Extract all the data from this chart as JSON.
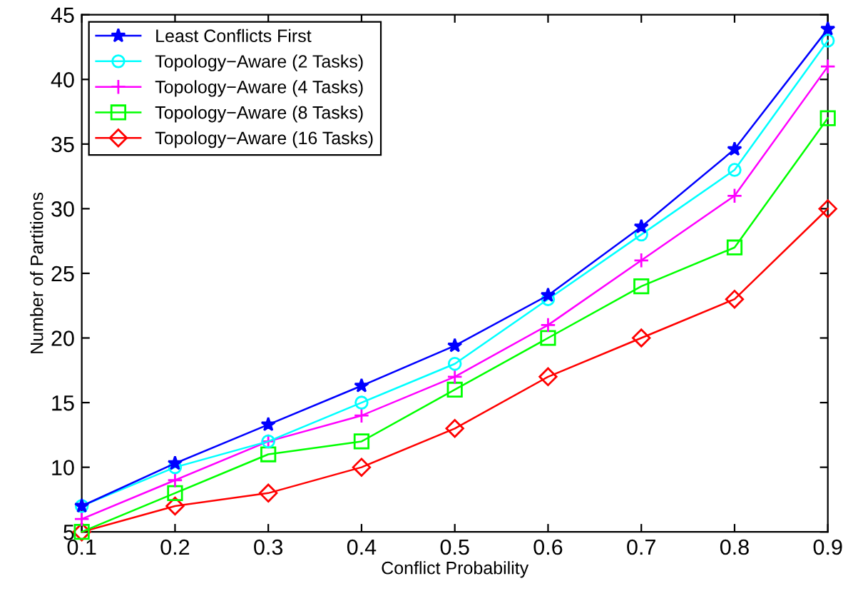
{
  "chart_data": {
    "type": "line",
    "xlabel": "Conflict Probability",
    "ylabel": "Number of Partitions",
    "x": [
      0.1,
      0.2,
      0.3,
      0.4,
      0.5,
      0.6,
      0.7,
      0.8,
      0.9
    ],
    "xlim": [
      0.1,
      0.9
    ],
    "xticks": [
      0.1,
      0.2,
      0.3,
      0.4,
      0.5,
      0.6,
      0.7,
      0.8,
      0.9
    ],
    "ylim": [
      5,
      45
    ],
    "yticks": [
      5,
      10,
      15,
      20,
      25,
      30,
      35,
      40,
      45
    ],
    "grid": false,
    "legend": "top left",
    "line_style": "solid",
    "series": [
      {
        "name": "Least Conflicts First",
        "color": "#0000ff",
        "marker": "star",
        "values": [
          7,
          10.3,
          13.3,
          16.3,
          19.4,
          23.3,
          28.6,
          34.6,
          43.9
        ]
      },
      {
        "name": "Topology−Aware (2 Tasks)",
        "color": "#00ffff",
        "marker": "circle",
        "values": [
          7,
          10,
          12,
          15,
          18,
          23,
          28,
          33,
          43
        ]
      },
      {
        "name": "Topology−Aware (4 Tasks)",
        "color": "#ff00ff",
        "marker": "cross",
        "values": [
          6,
          9,
          12,
          14,
          17,
          21,
          26,
          31,
          41
        ]
      },
      {
        "name": "Topology−Aware (8 Tasks)",
        "color": "#00ff00",
        "marker": "square",
        "values": [
          5,
          8,
          11,
          12,
          16,
          20,
          24,
          27,
          37
        ]
      },
      {
        "name": "Topology−Aware (16 Tasks)",
        "color": "#ff0000",
        "marker": "diamond",
        "values": [
          5,
          7,
          8,
          10,
          13,
          17,
          20,
          23,
          30
        ]
      }
    ]
  }
}
